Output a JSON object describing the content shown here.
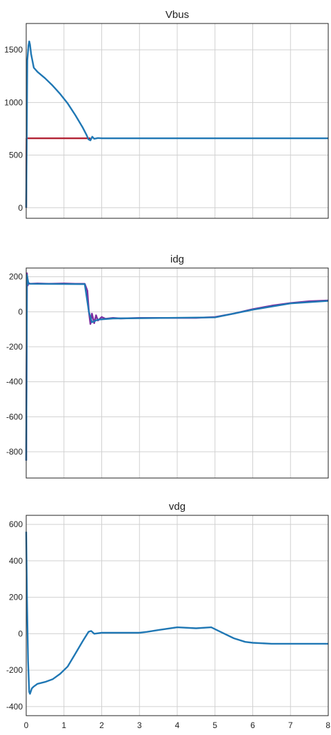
{
  "chart_data": [
    {
      "type": "line",
      "title": "Vbus",
      "xlim": [
        0,
        8
      ],
      "ylim": [
        -100,
        1750
      ],
      "yticks": [
        0,
        500,
        1000,
        1500
      ],
      "xticks": [],
      "grid": true,
      "series": [
        {
          "color": "#b22234",
          "x": [
            0.0,
            0.01,
            1.7
          ],
          "y": [
            0,
            660,
            660
          ]
        },
        {
          "color": "#1f77b4",
          "x": [
            0.0,
            0.03,
            0.06,
            0.08,
            0.1,
            0.13,
            0.2,
            0.3,
            0.5,
            0.7,
            0.9,
            1.1,
            1.3,
            1.5,
            1.6,
            1.65,
            1.7,
            1.75,
            1.8,
            1.9,
            2.0,
            3.0,
            4.0,
            5.0,
            6.0,
            7.0,
            8.0
          ],
          "y": [
            0,
            1400,
            1540,
            1580,
            1550,
            1460,
            1330,
            1290,
            1230,
            1160,
            1080,
            990,
            880,
            760,
            690,
            650,
            640,
            675,
            655,
            662,
            660,
            660,
            660,
            660,
            660,
            660,
            660
          ]
        }
      ]
    },
    {
      "type": "line",
      "title": "idg",
      "xlim": [
        0,
        8
      ],
      "ylim": [
        -950,
        250
      ],
      "yticks": [
        200,
        0,
        -200,
        -400,
        -600,
        -800
      ],
      "xticks": [],
      "grid": true,
      "series": [
        {
          "color": "#7b2fa0",
          "x": [
            0.0,
            0.02,
            0.04,
            0.06,
            0.1,
            0.3,
            0.6,
            1.0,
            1.3,
            1.55,
            1.62,
            1.66,
            1.7,
            1.74,
            1.8,
            1.85,
            1.9,
            2.0,
            2.1,
            2.3,
            2.5,
            3.0,
            4.0,
            4.5,
            5.0,
            5.5,
            6.0,
            6.5,
            7.0,
            7.5,
            8.0
          ],
          "y": [
            -850,
            220,
            150,
            165,
            160,
            162,
            160,
            162,
            160,
            160,
            120,
            0,
            -70,
            -10,
            -65,
            -20,
            -50,
            -30,
            -40,
            -35,
            -38,
            -35,
            -35,
            -35,
            -30,
            -10,
            15,
            35,
            50,
            60,
            65
          ]
        },
        {
          "color": "#1f77b4",
          "x": [
            0.0,
            0.02,
            0.06,
            1.55,
            1.66,
            1.74,
            1.9,
            2.3,
            5.0,
            6.0,
            7.0,
            8.0
          ],
          "y": [
            -850,
            210,
            160,
            158,
            0,
            -60,
            -45,
            -38,
            -32,
            12,
            48,
            62
          ]
        }
      ]
    },
    {
      "type": "line",
      "title": "vdg",
      "xlim": [
        0,
        8
      ],
      "ylim": [
        -450,
        650
      ],
      "yticks": [
        600,
        400,
        200,
        0,
        -200,
        -400
      ],
      "xticks": [
        0,
        1,
        2,
        3,
        4,
        5,
        6,
        7,
        8
      ],
      "grid": true,
      "series": [
        {
          "color": "#1f77b4",
          "x": [
            0.0,
            0.02,
            0.05,
            0.08,
            0.1,
            0.15,
            0.2,
            0.3,
            0.5,
            0.7,
            0.9,
            1.1,
            1.3,
            1.5,
            1.65,
            1.72,
            1.8,
            2.0,
            2.5,
            3.0,
            3.2,
            3.5,
            4.0,
            4.5,
            4.9,
            5.1,
            5.5,
            5.8,
            6.0,
            6.5,
            7.0,
            7.5,
            8.0
          ],
          "y": [
            560,
            200,
            -150,
            -320,
            -330,
            -300,
            -290,
            -275,
            -265,
            -250,
            -220,
            -180,
            -110,
            -40,
            10,
            15,
            0,
            5,
            5,
            5,
            10,
            20,
            35,
            30,
            35,
            15,
            -25,
            -45,
            -50,
            -55,
            -55,
            -55,
            -55
          ]
        }
      ]
    }
  ]
}
